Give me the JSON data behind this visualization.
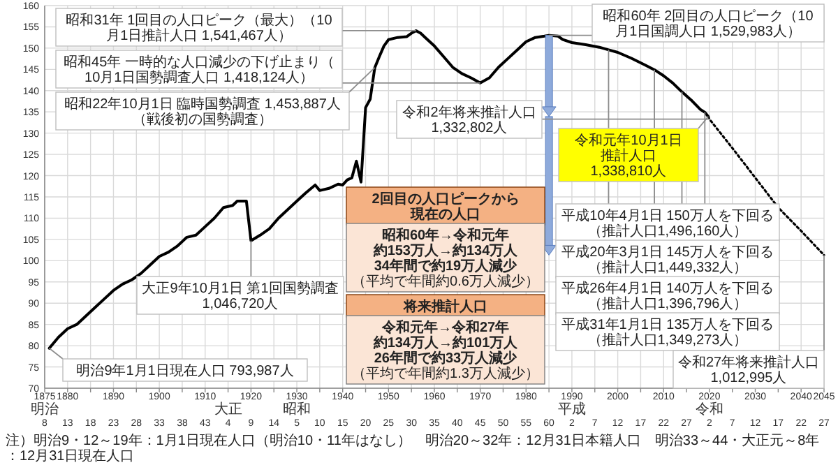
{
  "chart_data": {
    "type": "line",
    "xlim": [
      1875,
      2045
    ],
    "ylim": [
      70,
      160
    ],
    "xticks": [
      1875,
      1880,
      {
        "value": 1885,
        "label": null
      },
      1890,
      {
        "value": 1895,
        "label": null
      },
      1900,
      {
        "value": 1905,
        "label": null
      },
      1910,
      {
        "value": 1915,
        "label": null
      },
      1920,
      {
        "value": 1925,
        "label": null
      },
      1930,
      {
        "value": 1935,
        "label": null
      },
      1940,
      {
        "value": 1945,
        "label": null
      },
      1950,
      {
        "value": 1955,
        "label": null
      },
      1960,
      {
        "value": 1965,
        "label": null
      },
      1970,
      {
        "value": 1975,
        "label": null
      },
      1980,
      {
        "value": 1985,
        "label": null
      },
      1990,
      {
        "value": 1995,
        "label": null
      },
      2000,
      {
        "value": 2005,
        "label": null
      },
      2010,
      {
        "value": 2015,
        "label": null
      },
      2020,
      {
        "value": 2025,
        "label": null
      },
      2030,
      {
        "value": 2035,
        "label": null
      },
      2040,
      2045
    ],
    "yticks": [
      70,
      75,
      80,
      85,
      90,
      95,
      100,
      105,
      110,
      115,
      120,
      125,
      130,
      135,
      140,
      145,
      150,
      155,
      160
    ],
    "grid": true,
    "series": [
      {
        "color": "#000000",
        "line_style": "solid",
        "x": [
          1876,
          1878,
          1880,
          1882,
          1884,
          1886,
          1888,
          1890,
          1892,
          1894,
          1896,
          1898,
          1900,
          1902,
          1904,
          1906,
          1908,
          1910,
          1912,
          1914,
          1916,
          1917,
          1919,
          1920,
          1922,
          1924,
          1926,
          1928,
          1930,
          1932,
          1934,
          1935,
          1937,
          1939,
          1940,
          1941,
          1942,
          1943,
          1944,
          1945,
          1946,
          1947,
          1948,
          1949,
          1950,
          1952,
          1954,
          1955,
          1956,
          1957,
          1958,
          1960,
          1962,
          1964,
          1966,
          1968,
          1970,
          1972,
          1974,
          1976,
          1978,
          1980,
          1982,
          1984,
          1985,
          1987,
          1988,
          1990,
          1993,
          1996,
          1998,
          2000,
          2003,
          2006,
          2008,
          2010,
          2012,
          2014,
          2016,
          2018,
          2019,
          2019.75
        ],
        "values": [
          79.4,
          82,
          84,
          85,
          87,
          89,
          91,
          93,
          94.5,
          95.5,
          97,
          99,
          101,
          102,
          103.5,
          105.5,
          106,
          108,
          110,
          112.5,
          113,
          114,
          114,
          104.7,
          106,
          107.5,
          110,
          112,
          114,
          116,
          117.8,
          116.5,
          117,
          118,
          117.8,
          119,
          119.5,
          123.4,
          118.5,
          136,
          138,
          145.4,
          148,
          150.5,
          152,
          152.5,
          152.7,
          153.5,
          154.1,
          153.5,
          152.5,
          150.5,
          148,
          145.5,
          144,
          143,
          141.8,
          143,
          145.5,
          147.5,
          149.5,
          151.5,
          152.5,
          152.8,
          153,
          152.8,
          152,
          151.3,
          150.8,
          150.2,
          149.6,
          149,
          147.6,
          146,
          144.9,
          143.5,
          141.8,
          139.7,
          137.8,
          135.6,
          134.9,
          133.9
        ]
      },
      {
        "color": "#000000",
        "line_style": "dotted",
        "x": [
          2019.75,
          2020,
          2025,
          2030,
          2035,
          2040,
          2045
        ],
        "values": [
          133.9,
          133.3,
          126.5,
          119.5,
          112.5,
          107,
          101.3
        ]
      }
    ],
    "annotations": [
      {
        "text": "昭和45年 一時的な人口減少の下げ止まり（10月1日国勢調査人口 1,418,124人）",
        "x": 1970,
        "y": 141.8
      },
      {
        "text": "昭和31年 1回目の人口ピーク（最大）（10月1日推計人口 1,541,467人）",
        "x": 1956,
        "y": 154.1
      },
      {
        "text": "昭和60年 2回目の人口ピーク（10月1日国調人口 1,529,983人）",
        "x": 1985,
        "y": 153
      },
      {
        "text": "昭和22年10月1日 臨時国勢調査 1,453,887人（戦後初の国勢調査）",
        "x": 1947,
        "y": 145.4
      },
      {
        "text": "平成10年4月1日 150万人を下回る（推計人口1,496,160人）",
        "x": 1998,
        "y": 149.6
      },
      {
        "text": "平成20年3月1日 145万人を下回る（推計人口1,449,332人）",
        "x": 2008,
        "y": 144.9
      },
      {
        "text": "平成26年4月1日 140万人を下回る（推計人口1,396,796人）",
        "x": 2014,
        "y": 139.7
      },
      {
        "text": "平成31年1月1日 135万人を下回る（推計人口1,349,273人）",
        "x": 2019,
        "y": 134.9
      },
      {
        "text": "令和元年10月1日推計人口 1,338,810人",
        "x": 2019.75,
        "y": 133.9
      },
      {
        "text": "令和2年将来推計人口 1,332,802人",
        "x": 2020,
        "y": 133.3
      },
      {
        "text": "令和27年将来推計人口 1,012,995人",
        "x": 2045,
        "y": 101.3
      },
      {
        "text": "大正9年10月1日 第1回国勢調査 1,046,720人",
        "x": 1920,
        "y": 104.7
      },
      {
        "text": "明治9年1月1日現在人口 793,987人",
        "x": 1876,
        "y": 79.4
      },
      "2回目の人口ピークから現在の人口",
      "昭和60年→令和元年約153万人→約134万人34年間で約19万人減少（平均で年間約0.6万人減少）",
      "将来推計人口",
      "令和元年→令和27年約134万人→約101万人26年間で約33万人減少（平均で年間約1.3万人減少）",
      "注）明治9・12～19年：1月1日現在人口（明治10・11年はなし）　明治20～32年：12月31日本籍人口　明治33～44・大正元～8年：12月31日現在人口",
      "明治",
      "大正",
      "昭和",
      "平成",
      "令和",
      "8 13 18 23 28 33 38 43",
      "4 9 14",
      "5 10 15 20 25 30 35 40 45 50 55 60",
      "2 7 12 17 22 27",
      "2 7 12 17 22 27"
    ]
  }
}
